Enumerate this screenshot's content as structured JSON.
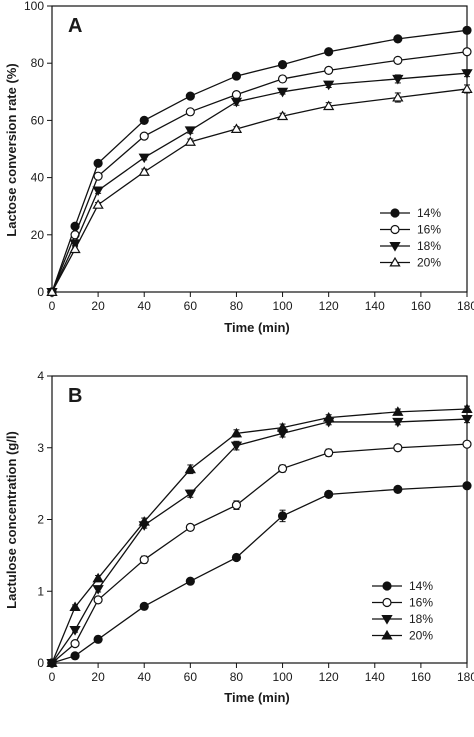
{
  "chart_data": [
    {
      "type": "line",
      "panel_label": "A",
      "xlabel": "Time (min)",
      "ylabel": "Lactose conversion rate (%)",
      "xlim": [
        0,
        180
      ],
      "ylim": [
        0,
        100
      ],
      "xticks": [
        0,
        20,
        40,
        60,
        80,
        100,
        120,
        140,
        160,
        180
      ],
      "yticks": [
        0,
        20,
        40,
        60,
        80,
        100
      ],
      "legend_position": "right-center",
      "grid": false,
      "x": [
        0,
        10,
        20,
        40,
        60,
        80,
        100,
        120,
        150,
        180
      ],
      "series": [
        {
          "name": "14%",
          "marker": "circle-filled",
          "values": [
            0,
            23,
            45,
            60,
            68.5,
            75.5,
            79.5,
            84,
            88.5,
            91.5
          ],
          "errors": [
            0,
            0.8,
            0.8,
            0.8,
            1,
            0.8,
            0.8,
            0.8,
            0.8,
            0.8
          ]
        },
        {
          "name": "16%",
          "marker": "circle-open",
          "values": [
            0,
            20,
            40.5,
            54.5,
            63,
            69,
            74.5,
            77.5,
            81,
            84
          ],
          "errors": [
            0,
            0.8,
            0.8,
            0.8,
            0.8,
            1,
            0.8,
            0.8,
            0.8,
            0.8
          ]
        },
        {
          "name": "18%",
          "marker": "triangle-down-filled",
          "values": [
            0,
            17,
            35.5,
            47,
            56.5,
            66.5,
            70,
            72.5,
            74.5,
            76.5
          ],
          "errors": [
            0,
            0.8,
            1,
            0.8,
            1,
            1.2,
            0.8,
            1,
            1.4,
            1.2
          ]
        },
        {
          "name": "20%",
          "marker": "triangle-up-open",
          "values": [
            0,
            15,
            30.5,
            42,
            52.5,
            57,
            61.5,
            65,
            68,
            71
          ],
          "errors": [
            0,
            0.8,
            0.8,
            1,
            1,
            0.8,
            1,
            1.2,
            1.6,
            1.4
          ]
        }
      ]
    },
    {
      "type": "line",
      "panel_label": "B",
      "xlabel": "Time (min)",
      "ylabel": "Lactulose concentration (g/l)",
      "xlim": [
        0,
        180
      ],
      "ylim": [
        0,
        4
      ],
      "xticks": [
        0,
        20,
        40,
        60,
        80,
        100,
        120,
        140,
        160,
        180
      ],
      "yticks": [
        0,
        1,
        2,
        3,
        4
      ],
      "legend_position": "bottom-right",
      "grid": false,
      "x": [
        0,
        10,
        20,
        40,
        60,
        80,
        100,
        120,
        150,
        180
      ],
      "series": [
        {
          "name": "14%",
          "marker": "circle-filled",
          "values": [
            0,
            0.1,
            0.33,
            0.79,
            1.14,
            1.47,
            2.05,
            2.35,
            2.42,
            2.47
          ],
          "errors": [
            0,
            0.01,
            0.02,
            0.02,
            0.03,
            0.03,
            0.08,
            0.03,
            0.04,
            0.04
          ]
        },
        {
          "name": "16%",
          "marker": "circle-open",
          "values": [
            0,
            0.27,
            0.88,
            1.44,
            1.89,
            2.2,
            2.71,
            2.93,
            3.0,
            3.05
          ],
          "errors": [
            0,
            0.02,
            0.03,
            0.05,
            0.04,
            0.06,
            0.05,
            0.05,
            0.04,
            0.04
          ]
        },
        {
          "name": "18%",
          "marker": "triangle-down-filled",
          "values": [
            0,
            0.46,
            1.03,
            1.92,
            2.36,
            3.03,
            3.2,
            3.36,
            3.36,
            3.4
          ],
          "errors": [
            0,
            0.03,
            0.04,
            0.04,
            0.05,
            0.06,
            0.05,
            0.04,
            0.04,
            0.05
          ]
        },
        {
          "name": "20%",
          "marker": "triangle-up-filled",
          "values": [
            0,
            0.78,
            1.18,
            1.97,
            2.7,
            3.2,
            3.28,
            3.42,
            3.5,
            3.54
          ],
          "errors": [
            0,
            0.03,
            0.04,
            0.05,
            0.06,
            0.05,
            0.05,
            0.04,
            0.04,
            0.04
          ]
        }
      ]
    }
  ]
}
